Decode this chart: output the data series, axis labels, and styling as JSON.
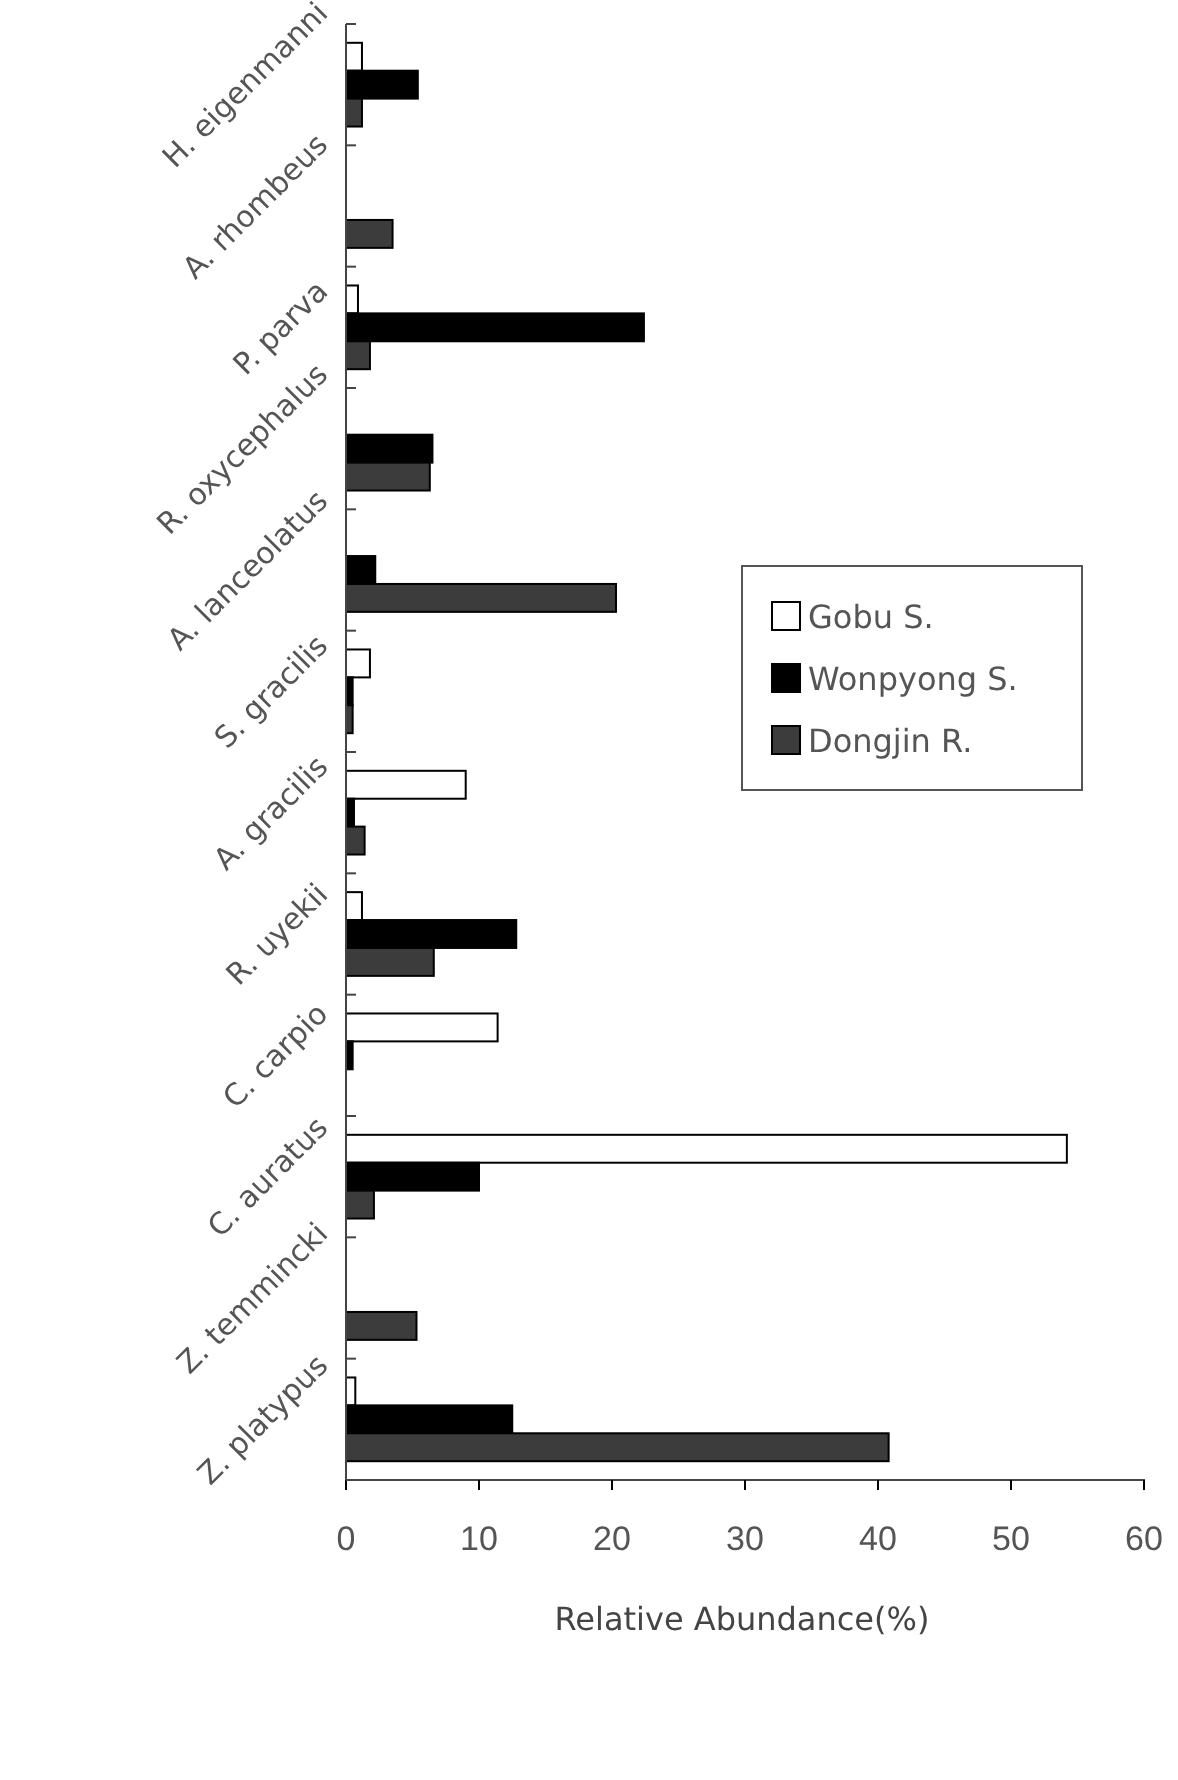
{
  "chart_data": {
    "type": "bar",
    "orientation": "horizontal",
    "xlabel": "Relative Abundance(%)",
    "categories": [
      "H. eigenmanni",
      "A. rhombeus",
      "P. parva",
      "R. oxycephalus",
      "A. lanceolatus",
      "S. gracilis",
      "A. gracilis",
      "R. uyekii",
      "C. carpio",
      "C. auratus",
      "Z. temmincki",
      "Z. platypus"
    ],
    "series": [
      {
        "name": "Gobu S.",
        "color": "#ffffff",
        "values": [
          1.2,
          0,
          0.9,
          0,
          0,
          1.8,
          9.0,
          1.2,
          11.4,
          54.2,
          0,
          0.7
        ]
      },
      {
        "name": "Wonpyong S.",
        "color": "#000000",
        "values": [
          5.4,
          0,
          22.4,
          6.5,
          2.2,
          0.5,
          0.6,
          12.8,
          0.5,
          10.0,
          0,
          12.5
        ]
      },
      {
        "name": "Dongjin R.",
        "color": "#3c3c3c",
        "values": [
          1.2,
          3.5,
          1.8,
          6.3,
          20.3,
          0.5,
          1.4,
          6.6,
          0,
          2.1,
          5.3,
          40.8
        ]
      }
    ],
    "xlim": [
      0,
      60
    ],
    "xticks": [
      0,
      10,
      20,
      30,
      40,
      50,
      60
    ],
    "grid": false,
    "legend": "right"
  }
}
